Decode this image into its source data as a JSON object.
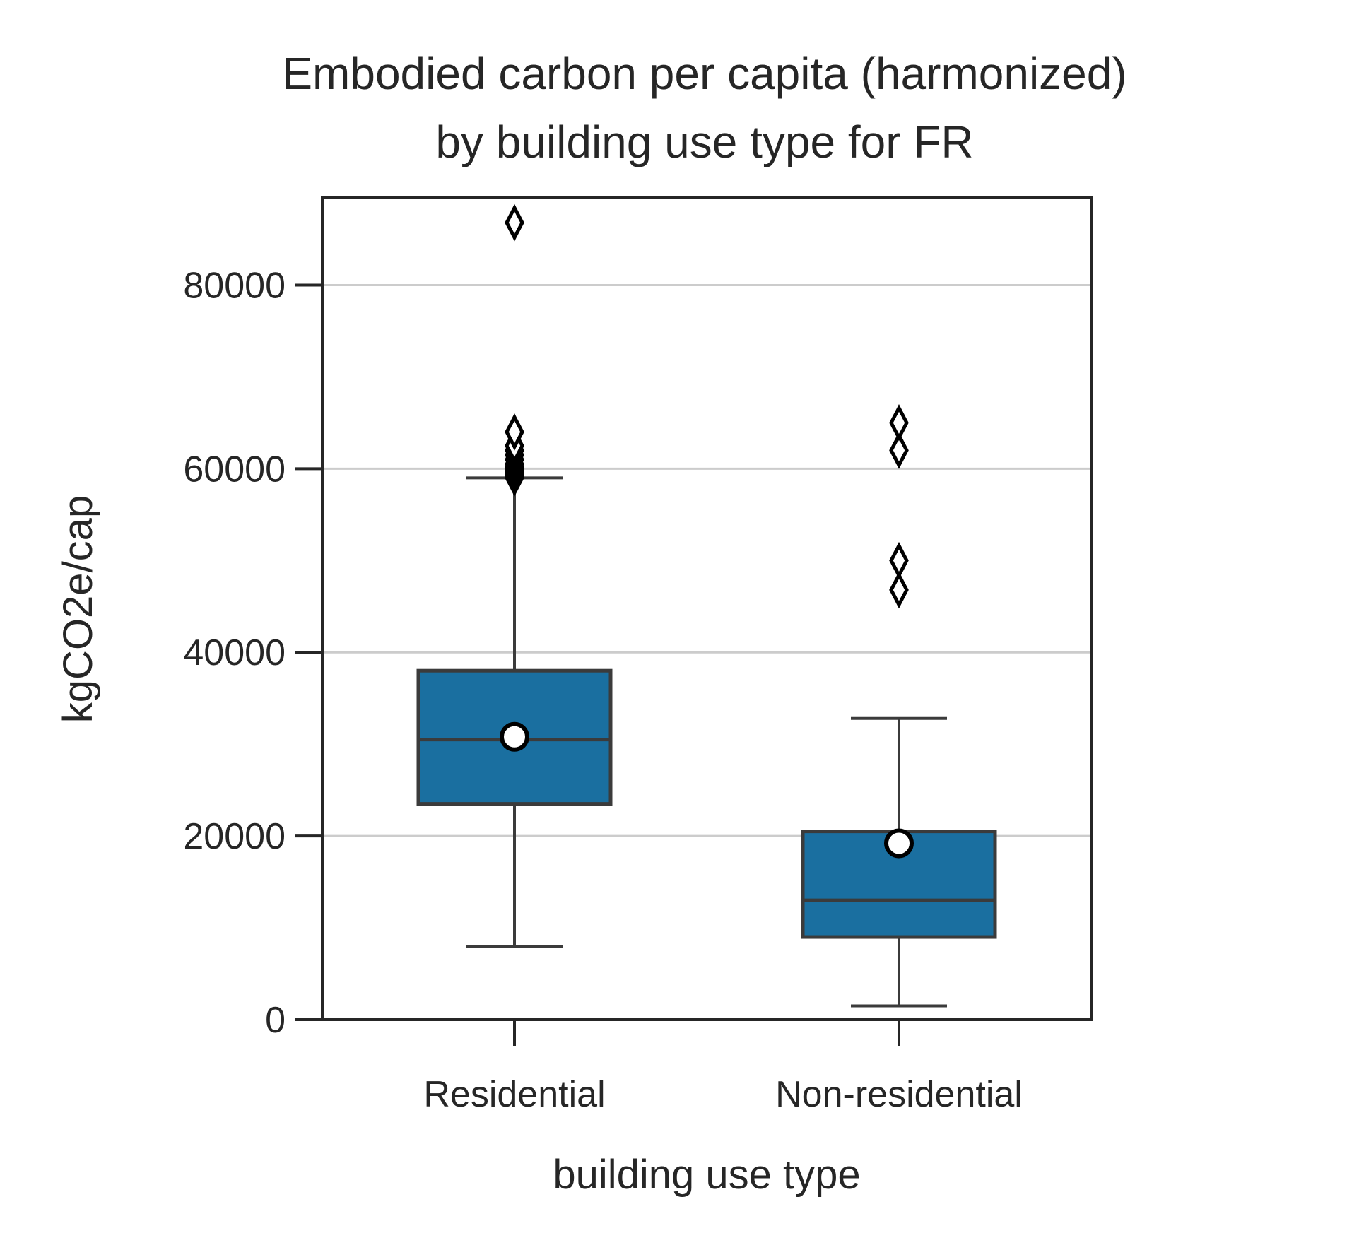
{
  "chart_data": {
    "type": "box",
    "title_lines": [
      "Embodied carbon per capita (harmonized)",
      "by building use type for FR"
    ],
    "xlabel": "building use type",
    "ylabel": "kgCO2e/cap",
    "ylim": [
      0,
      89500
    ],
    "yticks": [
      0,
      20000,
      40000,
      60000,
      80000
    ],
    "ytick_labels": [
      "0",
      "20000",
      "40000",
      "60000",
      "80000"
    ],
    "grid": "horizontal",
    "colors": {
      "box": "#1a6fa0",
      "line": "#3b3b3b",
      "grid": "#cccccc",
      "frame": "#262626"
    },
    "categories": [
      "Residential",
      "Non-residential"
    ],
    "boxes": [
      {
        "category": "Residential",
        "whisker_low": 8000,
        "q1": 23500,
        "median": 30500,
        "q3": 38000,
        "whisker_high": 59000,
        "mean": 30800,
        "outliers": [
          59000,
          59200,
          59400,
          59600,
          59800,
          60000,
          60200,
          60500,
          61000,
          61500,
          62000,
          62500,
          64000,
          86800
        ]
      },
      {
        "category": "Non-residential",
        "whisker_low": 1500,
        "q1": 9000,
        "median": 13000,
        "q3": 20500,
        "whisker_high": 32800,
        "mean": 19200,
        "outliers": [
          46800,
          50000,
          62000,
          65000
        ]
      }
    ]
  }
}
